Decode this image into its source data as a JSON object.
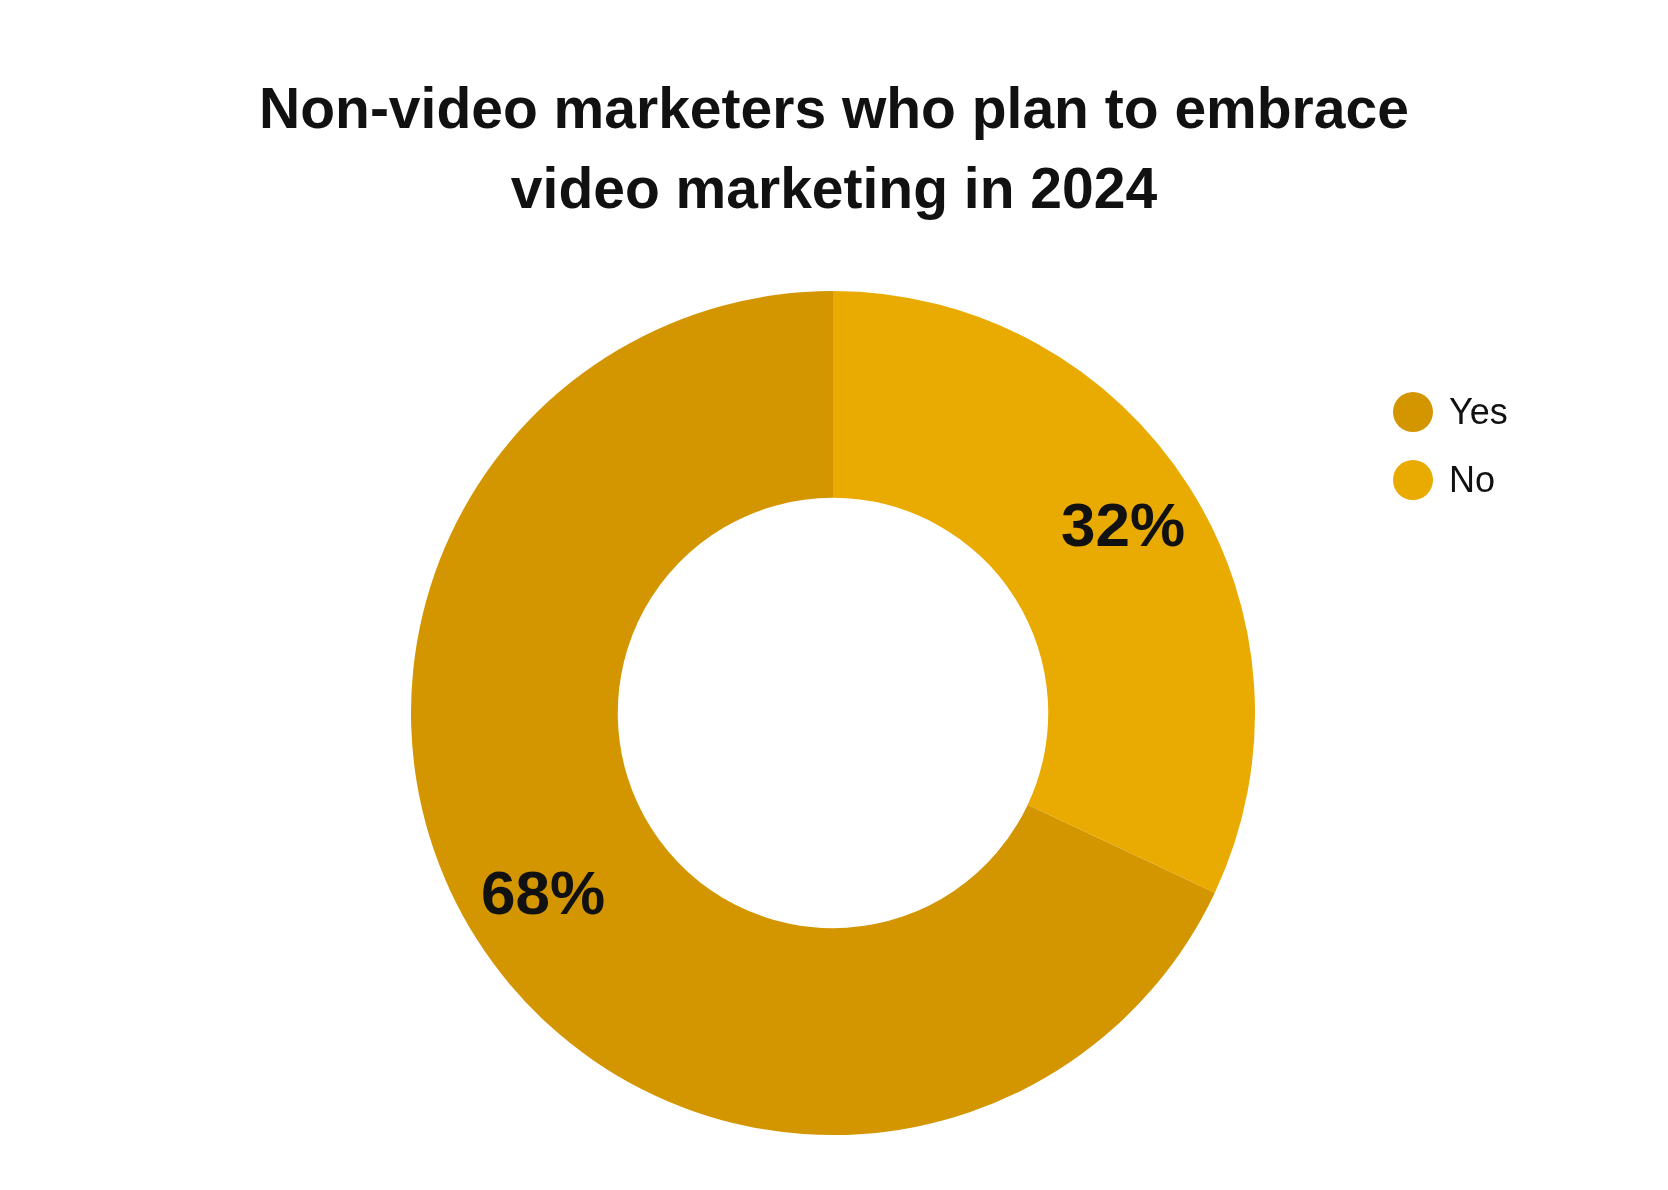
{
  "chart_data": {
    "type": "donut",
    "title": "Non-video marketers who plan to embrace video marketing in 2024",
    "categories": [
      "Yes",
      "No"
    ],
    "values": [
      68,
      32
    ],
    "colors": [
      "#d49600",
      "#e9aa02"
    ],
    "value_labels": [
      "68%",
      "32%"
    ],
    "legend": "right"
  }
}
